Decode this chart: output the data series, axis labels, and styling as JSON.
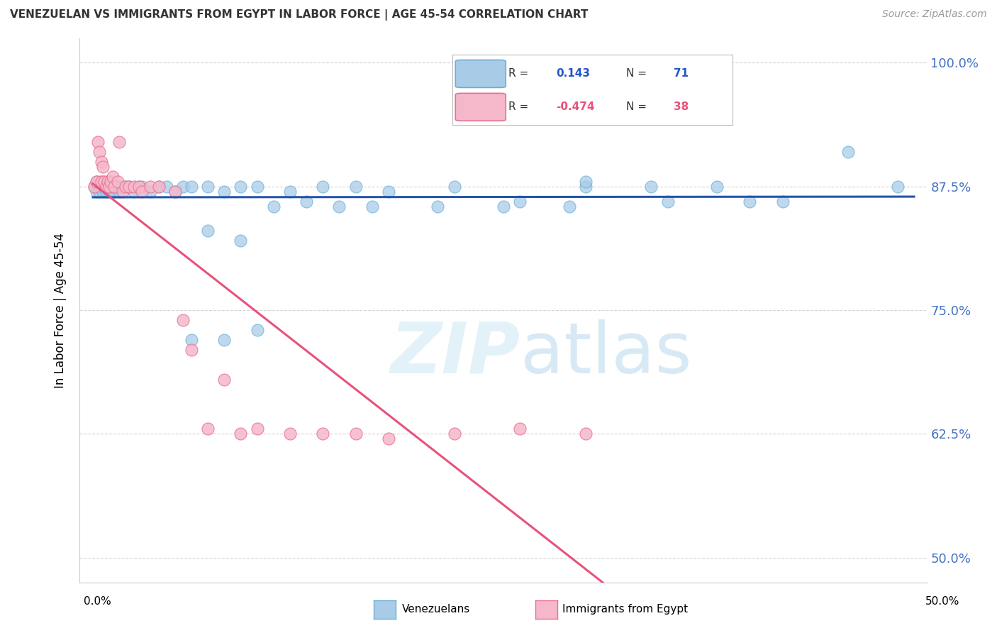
{
  "title": "VENEZUELAN VS IMMIGRANTS FROM EGYPT IN LABOR FORCE | AGE 45-54 CORRELATION CHART",
  "source": "Source: ZipAtlas.com",
  "ylabel": "In Labor Force | Age 45-54",
  "ytick_labels": [
    "50.0%",
    "62.5%",
    "75.0%",
    "87.5%",
    "100.0%"
  ],
  "ytick_values": [
    0.5,
    0.625,
    0.75,
    0.875,
    1.0
  ],
  "xlim": [
    0.0,
    0.5
  ],
  "ylim": [
    0.48,
    1.02
  ],
  "blue_scatter_color": "#a8cce8",
  "blue_scatter_edge": "#6baed6",
  "blue_line_color": "#2255aa",
  "pink_scatter_color": "#f5b8ca",
  "pink_scatter_edge": "#e87090",
  "pink_line_color": "#e8527a",
  "dash_line_color": "#cccccc",
  "watermark_color": "#daeef8",
  "legend_box_color": "#ffffff",
  "legend_border_color": "#cccccc",
  "blue_text_color": "#2255cc",
  "pink_text_color": "#e8527a",
  "right_axis_color": "#4472c4",
  "ven_x": [
    0.001,
    0.002,
    0.002,
    0.003,
    0.003,
    0.004,
    0.004,
    0.005,
    0.005,
    0.006,
    0.006,
    0.007,
    0.007,
    0.008,
    0.008,
    0.009,
    0.009,
    0.01,
    0.01,
    0.011,
    0.011,
    0.012,
    0.013,
    0.014,
    0.015,
    0.016,
    0.017,
    0.018,
    0.02,
    0.022,
    0.025,
    0.028,
    0.03,
    0.035,
    0.04,
    0.045,
    0.05,
    0.055,
    0.06,
    0.07,
    0.08,
    0.09,
    0.1,
    0.12,
    0.14,
    0.16,
    0.18,
    0.22,
    0.26,
    0.3,
    0.34,
    0.38,
    0.07,
    0.09,
    0.11,
    0.13,
    0.15,
    0.17,
    0.21,
    0.25,
    0.29,
    0.06,
    0.08,
    0.1,
    0.3,
    0.35,
    0.4,
    0.42,
    0.46,
    0.49
  ],
  "ven_y": [
    0.875,
    0.88,
    0.87,
    0.875,
    0.88,
    0.87,
    0.875,
    0.875,
    0.88,
    0.875,
    0.87,
    0.875,
    0.88,
    0.875,
    0.87,
    0.875,
    0.875,
    0.875,
    0.87,
    0.875,
    0.875,
    0.875,
    0.87,
    0.875,
    0.875,
    0.87,
    0.875,
    0.875,
    0.875,
    0.875,
    0.87,
    0.875,
    0.875,
    0.87,
    0.875,
    0.875,
    0.87,
    0.875,
    0.875,
    0.875,
    0.87,
    0.875,
    0.875,
    0.87,
    0.875,
    0.875,
    0.87,
    0.875,
    0.86,
    0.875,
    0.875,
    0.875,
    0.83,
    0.82,
    0.855,
    0.86,
    0.855,
    0.855,
    0.855,
    0.855,
    0.855,
    0.72,
    0.72,
    0.73,
    0.88,
    0.86,
    0.86,
    0.86,
    0.91,
    0.875
  ],
  "egy_x": [
    0.001,
    0.002,
    0.003,
    0.004,
    0.005,
    0.005,
    0.006,
    0.007,
    0.008,
    0.009,
    0.01,
    0.011,
    0.012,
    0.013,
    0.015,
    0.016,
    0.018,
    0.02,
    0.022,
    0.025,
    0.028,
    0.03,
    0.035,
    0.04,
    0.05,
    0.055,
    0.06,
    0.07,
    0.08,
    0.09,
    0.1,
    0.12,
    0.14,
    0.16,
    0.18,
    0.22,
    0.26,
    0.3
  ],
  "egy_y": [
    0.875,
    0.88,
    0.92,
    0.91,
    0.9,
    0.88,
    0.895,
    0.88,
    0.875,
    0.88,
    0.875,
    0.88,
    0.885,
    0.875,
    0.88,
    0.92,
    0.87,
    0.875,
    0.875,
    0.875,
    0.875,
    0.87,
    0.875,
    0.875,
    0.87,
    0.74,
    0.71,
    0.63,
    0.68,
    0.625,
    0.63,
    0.625,
    0.625,
    0.625,
    0.62,
    0.625,
    0.63,
    0.625
  ]
}
